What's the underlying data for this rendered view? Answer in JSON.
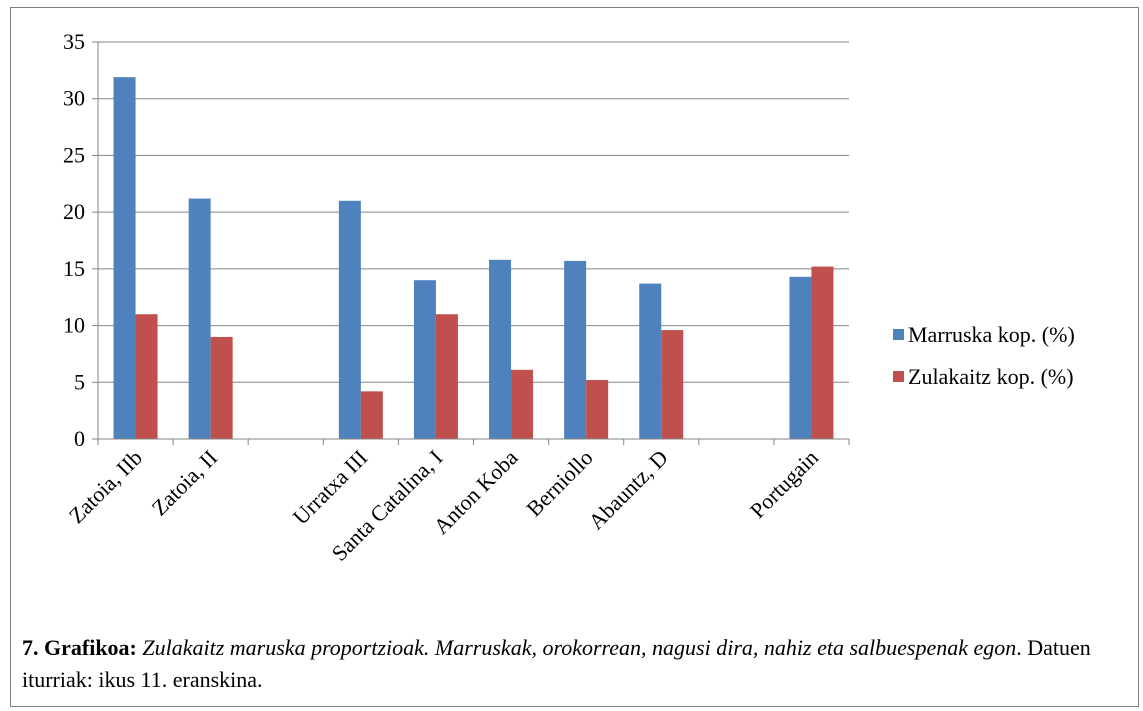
{
  "chart_data": {
    "type": "bar",
    "categories": [
      "Zatoia, IIb",
      "Zatoia, II",
      "",
      "Urratxa III",
      "Santa Catalina, I",
      "Anton Koba",
      "Berniollo",
      "Abauntz, D",
      "",
      "Portugain"
    ],
    "series": [
      {
        "name": "Marruska kop. (%)",
        "color": "#4F81BD",
        "values": [
          31.9,
          21.2,
          null,
          21.0,
          14.0,
          15.8,
          15.7,
          13.7,
          null,
          14.3
        ]
      },
      {
        "name": "Zulakaitz kop. (%)",
        "color": "#C0504D",
        "values": [
          11.0,
          9.0,
          null,
          4.2,
          11.0,
          6.1,
          5.2,
          9.6,
          null,
          15.2
        ]
      }
    ],
    "ylim": [
      0,
      35
    ],
    "yticks": [
      0,
      5,
      10,
      15,
      20,
      25,
      30,
      35
    ],
    "grid": true,
    "legend_position": "right"
  },
  "caption": {
    "label": "7. Grafikoa:",
    "italic_text": " Zulakaitz maruska proportzioak. Marruskak, orokorrean, nagusi dira, nahiz eta salbuespenak egon",
    "plain_text": ". Datuen iturriak: ikus 11. eranskina."
  }
}
